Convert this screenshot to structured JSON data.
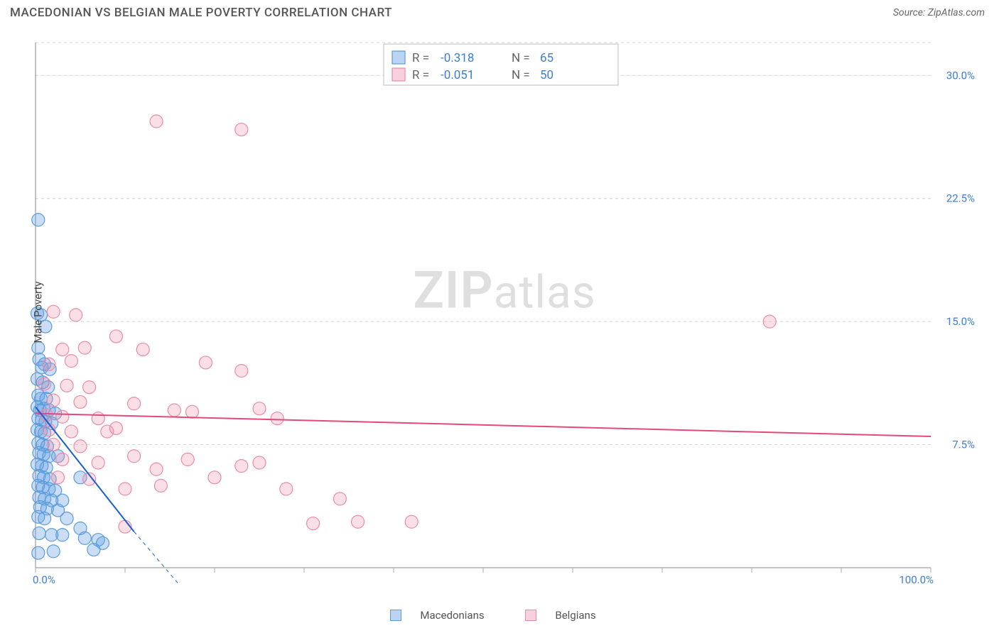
{
  "title": "MACEDONIAN VS BELGIAN MALE POVERTY CORRELATION CHART",
  "source_label": "Source: ",
  "source_value": "ZipAtlas.com",
  "ylabel": "Male Poverty",
  "watermark_strong": "ZIP",
  "watermark_light": "atlas",
  "chart": {
    "type": "scatter",
    "xlim": [
      0,
      100
    ],
    "ylim": [
      0,
      32
    ],
    "x_tick_step": 10,
    "y_ticks": [
      7.5,
      15.0,
      22.5,
      30.0
    ],
    "y_tick_labels": [
      "7.5%",
      "15.0%",
      "22.5%",
      "30.0%"
    ],
    "x_start_label": "0.0%",
    "x_end_label": "100.0%",
    "background_color": "#ffffff",
    "grid_color": "#d0d0d0",
    "marker_radius": 9,
    "series": [
      {
        "name": "Macedonians",
        "color_fill": "rgba(100,160,230,0.35)",
        "color_stroke": "#5a9bd8",
        "trend_color": "#1a5fd0",
        "R": "-0.318",
        "N": "65",
        "trend": {
          "x1": 0,
          "y1": 9.8,
          "x2": 11,
          "y2": 2.2,
          "dash_x2": 16,
          "dash_y2": -1
        },
        "points": [
          [
            0.3,
            21.2
          ],
          [
            0.2,
            15.5
          ],
          [
            0.6,
            15.4
          ],
          [
            1.1,
            14.7
          ],
          [
            0.3,
            13.4
          ],
          [
            0.4,
            12.7
          ],
          [
            0.7,
            12.2
          ],
          [
            1.0,
            12.4
          ],
          [
            1.6,
            12.1
          ],
          [
            0.2,
            11.5
          ],
          [
            0.8,
            11.3
          ],
          [
            1.4,
            11.0
          ],
          [
            0.3,
            10.5
          ],
          [
            0.6,
            10.3
          ],
          [
            1.2,
            10.3
          ],
          [
            0.2,
            9.8
          ],
          [
            0.5,
            9.6
          ],
          [
            0.9,
            9.7
          ],
          [
            1.5,
            9.6
          ],
          [
            2.2,
            9.4
          ],
          [
            0.3,
            9.1
          ],
          [
            0.7,
            9.0
          ],
          [
            1.1,
            8.9
          ],
          [
            1.8,
            8.8
          ],
          [
            0.2,
            8.4
          ],
          [
            0.6,
            8.3
          ],
          [
            1.0,
            8.2
          ],
          [
            0.3,
            7.6
          ],
          [
            0.8,
            7.5
          ],
          [
            1.3,
            7.4
          ],
          [
            0.4,
            7.0
          ],
          [
            0.9,
            6.9
          ],
          [
            1.5,
            6.8
          ],
          [
            2.5,
            6.8
          ],
          [
            0.2,
            6.3
          ],
          [
            0.7,
            6.2
          ],
          [
            1.2,
            6.1
          ],
          [
            0.4,
            5.6
          ],
          [
            0.9,
            5.5
          ],
          [
            1.6,
            5.4
          ],
          [
            5.0,
            5.5
          ],
          [
            0.3,
            5.0
          ],
          [
            0.8,
            4.9
          ],
          [
            1.5,
            4.8
          ],
          [
            2.2,
            4.7
          ],
          [
            0.4,
            4.3
          ],
          [
            1.0,
            4.2
          ],
          [
            1.8,
            4.1
          ],
          [
            3.0,
            4.1
          ],
          [
            0.5,
            3.7
          ],
          [
            1.3,
            3.6
          ],
          [
            2.5,
            3.5
          ],
          [
            0.3,
            3.1
          ],
          [
            1.0,
            3.0
          ],
          [
            3.5,
            3.0
          ],
          [
            5.0,
            2.4
          ],
          [
            0.4,
            2.1
          ],
          [
            1.8,
            2.0
          ],
          [
            3.0,
            2.0
          ],
          [
            5.5,
            1.8
          ],
          [
            7.0,
            1.7
          ],
          [
            7.5,
            1.5
          ],
          [
            0.3,
            0.9
          ],
          [
            2.0,
            1.0
          ],
          [
            6.5,
            1.1
          ]
        ]
      },
      {
        "name": "Belgians",
        "color_fill": "rgba(240,140,170,0.28)",
        "color_stroke": "#e88ba7",
        "trend_color": "#e24a7a",
        "R": "-0.051",
        "N": "50",
        "trend": {
          "x1": 0,
          "y1": 9.4,
          "x2": 100,
          "y2": 8.0
        },
        "points": [
          [
            13.5,
            27.2
          ],
          [
            23.0,
            26.7
          ],
          [
            2.0,
            15.6
          ],
          [
            4.5,
            15.4
          ],
          [
            82.0,
            15.0
          ],
          [
            5.5,
            13.4
          ],
          [
            3.0,
            13.3
          ],
          [
            9.0,
            14.1
          ],
          [
            12.0,
            13.3
          ],
          [
            1.5,
            12.4
          ],
          [
            4.0,
            12.6
          ],
          [
            19.0,
            12.5
          ],
          [
            23.0,
            12.0
          ],
          [
            1.0,
            11.2
          ],
          [
            3.5,
            11.1
          ],
          [
            6.0,
            11.0
          ],
          [
            2.0,
            10.2
          ],
          [
            5.0,
            10.1
          ],
          [
            11.0,
            10.0
          ],
          [
            1.2,
            9.3
          ],
          [
            3.0,
            9.2
          ],
          [
            7.0,
            9.1
          ],
          [
            15.5,
            9.6
          ],
          [
            17.5,
            9.5
          ],
          [
            25.0,
            9.7
          ],
          [
            27.0,
            9.1
          ],
          [
            1.5,
            8.4
          ],
          [
            4.0,
            8.3
          ],
          [
            8.0,
            8.3
          ],
          [
            2.0,
            7.5
          ],
          [
            5.0,
            7.4
          ],
          [
            9.0,
            8.5
          ],
          [
            3.0,
            6.6
          ],
          [
            7.0,
            6.4
          ],
          [
            11.0,
            6.8
          ],
          [
            13.5,
            6.0
          ],
          [
            17.0,
            6.6
          ],
          [
            23.0,
            6.2
          ],
          [
            25.0,
            6.4
          ],
          [
            2.5,
            5.5
          ],
          [
            6.0,
            5.4
          ],
          [
            10.0,
            4.8
          ],
          [
            14.0,
            5.0
          ],
          [
            20.0,
            5.5
          ],
          [
            28.0,
            4.8
          ],
          [
            31.0,
            2.7
          ],
          [
            34.0,
            4.2
          ],
          [
            36.0,
            2.8
          ],
          [
            42.0,
            2.8
          ],
          [
            10.0,
            2.5
          ]
        ]
      }
    ],
    "stats_legend": {
      "R_label": "R =",
      "N_label": "N ="
    },
    "bottom_legend": [
      {
        "swatch": "blue",
        "label": "Macedonians"
      },
      {
        "swatch": "pink",
        "label": "Belgians"
      }
    ]
  }
}
